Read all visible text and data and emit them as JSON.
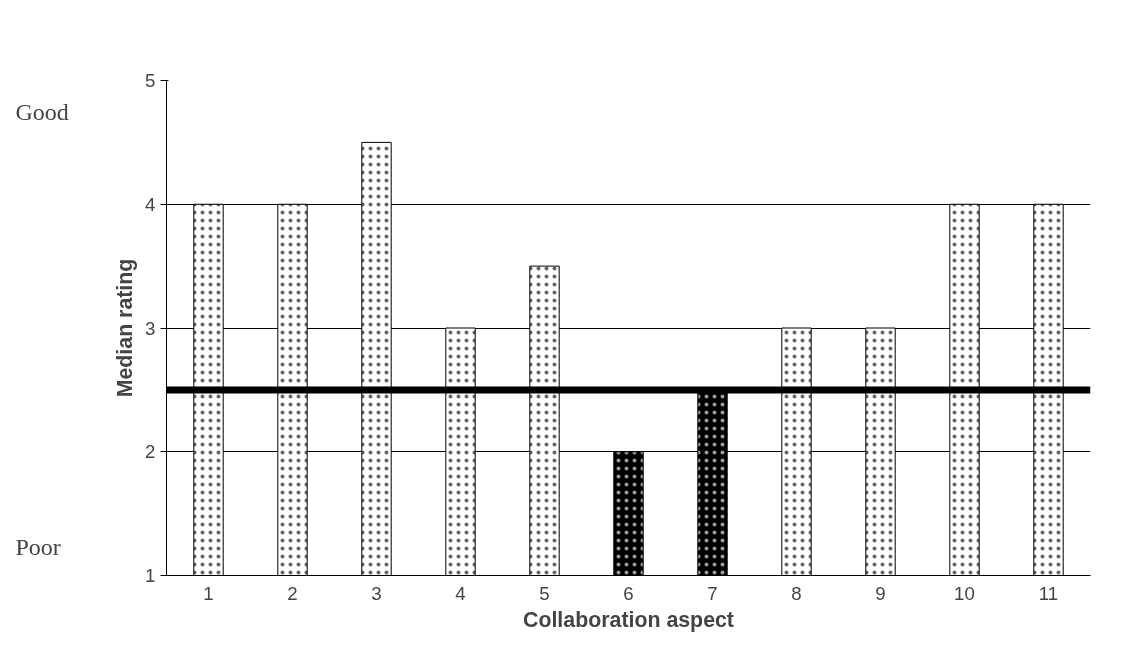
{
  "chart_data": {
    "type": "bar",
    "xlabel": "Collaboration aspect",
    "ylabel": "Median rating",
    "categories": [
      "1",
      "2",
      "3",
      "4",
      "5",
      "6",
      "7",
      "8",
      "9",
      "10",
      "11"
    ],
    "values": [
      4,
      4,
      4.5,
      3,
      3.5,
      2,
      2.5,
      3,
      3,
      4,
      4
    ],
    "colors": [
      "#ffffff",
      "#ffffff",
      "#ffffff",
      "#ffffff",
      "#ffffff",
      "#000000",
      "#000000",
      "#ffffff",
      "#ffffff",
      "#ffffff",
      "#ffffff"
    ],
    "ylim": [
      1,
      5
    ],
    "yticks": [
      1,
      2,
      3,
      4,
      5
    ],
    "grid": "y",
    "ref_lines": [
      {
        "axis": "y",
        "value": 2.5,
        "color": "#000000",
        "line_style": "solid"
      }
    ],
    "annotations": [
      "Good",
      "Poor"
    ]
  }
}
